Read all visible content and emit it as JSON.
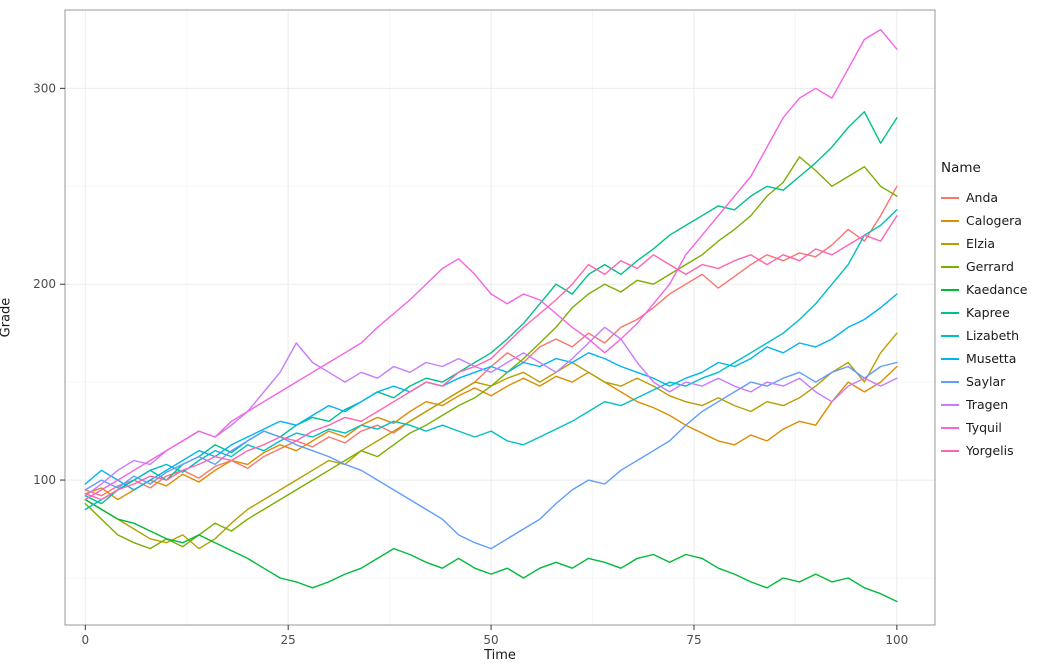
{
  "chart_data": {
    "type": "line",
    "title": "",
    "xlabel": "Time",
    "ylabel": "Grade",
    "legend_title": "Name",
    "legend_position": "right",
    "grid": "on",
    "x_ticks": [
      0,
      25,
      50,
      75,
      100
    ],
    "y_ticks": [
      100,
      200,
      300
    ],
    "x_minor": [
      12.5,
      37.5,
      62.5,
      87.5
    ],
    "y_minor": [
      50,
      150,
      250
    ],
    "xlim": [
      -2.5,
      104.7
    ],
    "ylim": [
      26,
      340
    ],
    "x_start": 0,
    "x_step": 2,
    "style": {
      "background": "#ffffff",
      "grid_major": "#ebebeb",
      "grid_minor": "#f6f6f6",
      "panel_border": "#999999",
      "tick_color": "#333333",
      "tick_label_color": "#4d4d4d",
      "axis_title_color": "#1a1a1a"
    },
    "series": [
      {
        "name": "Anda",
        "color": "#F8766D",
        "values": [
          95,
          92,
          97,
          100,
          96,
          102,
          105,
          101,
          107,
          110,
          106,
          112,
          116,
          120,
          117,
          122,
          119,
          125,
          128,
          124,
          130,
          135,
          140,
          145,
          150,
          158,
          165,
          160,
          168,
          172,
          168,
          175,
          170,
          178,
          182,
          188,
          195,
          200,
          205,
          198,
          204,
          210,
          215,
          212,
          216,
          214,
          220,
          228,
          222,
          235,
          250
        ]
      },
      {
        "name": "Calogera",
        "color": "#DE8C00",
        "values": [
          93,
          96,
          90,
          95,
          100,
          97,
          103,
          99,
          105,
          110,
          108,
          114,
          118,
          115,
          120,
          125,
          122,
          128,
          132,
          129,
          135,
          140,
          138,
          143,
          147,
          143,
          148,
          152,
          148,
          153,
          150,
          155,
          150,
          145,
          140,
          137,
          133,
          128,
          124,
          120,
          118,
          123,
          120,
          126,
          130,
          128,
          140,
          150,
          145,
          150,
          158
        ]
      },
      {
        "name": "Elzia",
        "color": "#B79F00",
        "values": [
          90,
          85,
          80,
          75,
          70,
          68,
          72,
          65,
          70,
          78,
          85,
          90,
          95,
          100,
          105,
          110,
          108,
          115,
          120,
          125,
          130,
          135,
          140,
          145,
          150,
          148,
          152,
          155,
          150,
          155,
          160,
          155,
          150,
          148,
          152,
          148,
          143,
          140,
          138,
          142,
          138,
          135,
          140,
          138,
          142,
          148,
          155,
          160,
          150,
          165,
          175
        ]
      },
      {
        "name": "Gerrard",
        "color": "#7CAE00",
        "values": [
          88,
          80,
          72,
          68,
          65,
          70,
          66,
          72,
          78,
          74,
          80,
          85,
          90,
          95,
          100,
          105,
          110,
          115,
          112,
          118,
          124,
          128,
          133,
          138,
          142,
          148,
          155,
          162,
          170,
          178,
          188,
          195,
          200,
          196,
          202,
          200,
          205,
          210,
          215,
          222,
          228,
          235,
          245,
          252,
          265,
          258,
          250,
          255,
          260,
          250,
          245
        ]
      },
      {
        "name": "Kaedance",
        "color": "#00BA38",
        "values": [
          90,
          85,
          80,
          78,
          74,
          70,
          68,
          72,
          68,
          64,
          60,
          55,
          50,
          48,
          45,
          48,
          52,
          55,
          60,
          65,
          62,
          58,
          55,
          60,
          55,
          52,
          55,
          50,
          55,
          58,
          55,
          60,
          58,
          55,
          60,
          62,
          58,
          62,
          60,
          55,
          52,
          48,
          45,
          50,
          48,
          52,
          48,
          50,
          45,
          42,
          38
        ]
      },
      {
        "name": "Kapree",
        "color": "#00C08B",
        "values": [
          92,
          88,
          95,
          100,
          105,
          100,
          108,
          112,
          118,
          114,
          120,
          125,
          122,
          128,
          132,
          130,
          136,
          140,
          145,
          142,
          148,
          152,
          150,
          155,
          160,
          165,
          172,
          180,
          190,
          200,
          195,
          205,
          210,
          205,
          212,
          218,
          225,
          230,
          235,
          240,
          238,
          245,
          250,
          248,
          255,
          262,
          270,
          280,
          288,
          272,
          285
        ]
      },
      {
        "name": "Lizabeth",
        "color": "#00BFC4",
        "values": [
          85,
          90,
          95,
          100,
          105,
          108,
          104,
          110,
          115,
          112,
          118,
          115,
          120,
          124,
          122,
          126,
          124,
          128,
          126,
          130,
          128,
          125,
          128,
          125,
          122,
          125,
          120,
          118,
          122,
          126,
          130,
          135,
          140,
          138,
          142,
          146,
          150,
          148,
          152,
          155,
          160,
          165,
          170,
          175,
          182,
          190,
          200,
          210,
          225,
          230,
          238
        ]
      },
      {
        "name": "Musetta",
        "color": "#00B4F0",
        "values": [
          98,
          105,
          100,
          95,
          100,
          105,
          110,
          115,
          112,
          118,
          122,
          126,
          130,
          128,
          133,
          138,
          135,
          140,
          145,
          148,
          145,
          150,
          148,
          152,
          155,
          158,
          155,
          160,
          158,
          162,
          160,
          165,
          162,
          158,
          155,
          152,
          148,
          152,
          155,
          160,
          158,
          162,
          168,
          165,
          170,
          168,
          172,
          178,
          182,
          188,
          195
        ]
      },
      {
        "name": "Saylar",
        "color": "#619CFF",
        "values": [
          95,
          100,
          96,
          102,
          98,
          104,
          108,
          112,
          108,
          115,
          120,
          125,
          122,
          118,
          115,
          112,
          108,
          105,
          100,
          95,
          90,
          85,
          80,
          72,
          68,
          65,
          70,
          75,
          80,
          88,
          95,
          100,
          98,
          105,
          110,
          115,
          120,
          128,
          135,
          140,
          145,
          150,
          148,
          152,
          155,
          150,
          155,
          158,
          152,
          158,
          160
        ]
      },
      {
        "name": "Tragen",
        "color": "#C77CFF",
        "values": [
          92,
          98,
          105,
          110,
          108,
          115,
          120,
          125,
          122,
          128,
          135,
          145,
          155,
          170,
          160,
          155,
          150,
          155,
          152,
          158,
          155,
          160,
          158,
          162,
          158,
          155,
          160,
          165,
          160,
          155,
          162,
          170,
          178,
          172,
          160,
          150,
          145,
          150,
          148,
          152,
          148,
          145,
          150,
          148,
          152,
          145,
          140,
          148,
          152,
          148,
          152
        ]
      },
      {
        "name": "Tyquil",
        "color": "#F564E3",
        "values": [
          90,
          95,
          100,
          105,
          110,
          115,
          120,
          125,
          122,
          130,
          135,
          140,
          145,
          150,
          155,
          160,
          165,
          170,
          178,
          185,
          192,
          200,
          208,
          213,
          205,
          195,
          190,
          195,
          192,
          185,
          178,
          172,
          165,
          172,
          180,
          190,
          200,
          215,
          225,
          235,
          245,
          255,
          270,
          285,
          295,
          300,
          295,
          310,
          325,
          330,
          320
        ]
      },
      {
        "name": "Yorgelis",
        "color": "#FF64B0",
        "values": [
          93,
          90,
          95,
          98,
          102,
          100,
          105,
          108,
          112,
          110,
          115,
          118,
          122,
          120,
          125,
          128,
          132,
          130,
          135,
          140,
          145,
          150,
          148,
          155,
          158,
          162,
          170,
          178,
          185,
          192,
          200,
          210,
          205,
          212,
          208,
          215,
          210,
          205,
          210,
          208,
          212,
          215,
          210,
          215,
          212,
          218,
          215,
          220,
          225,
          222,
          235
        ]
      }
    ]
  }
}
